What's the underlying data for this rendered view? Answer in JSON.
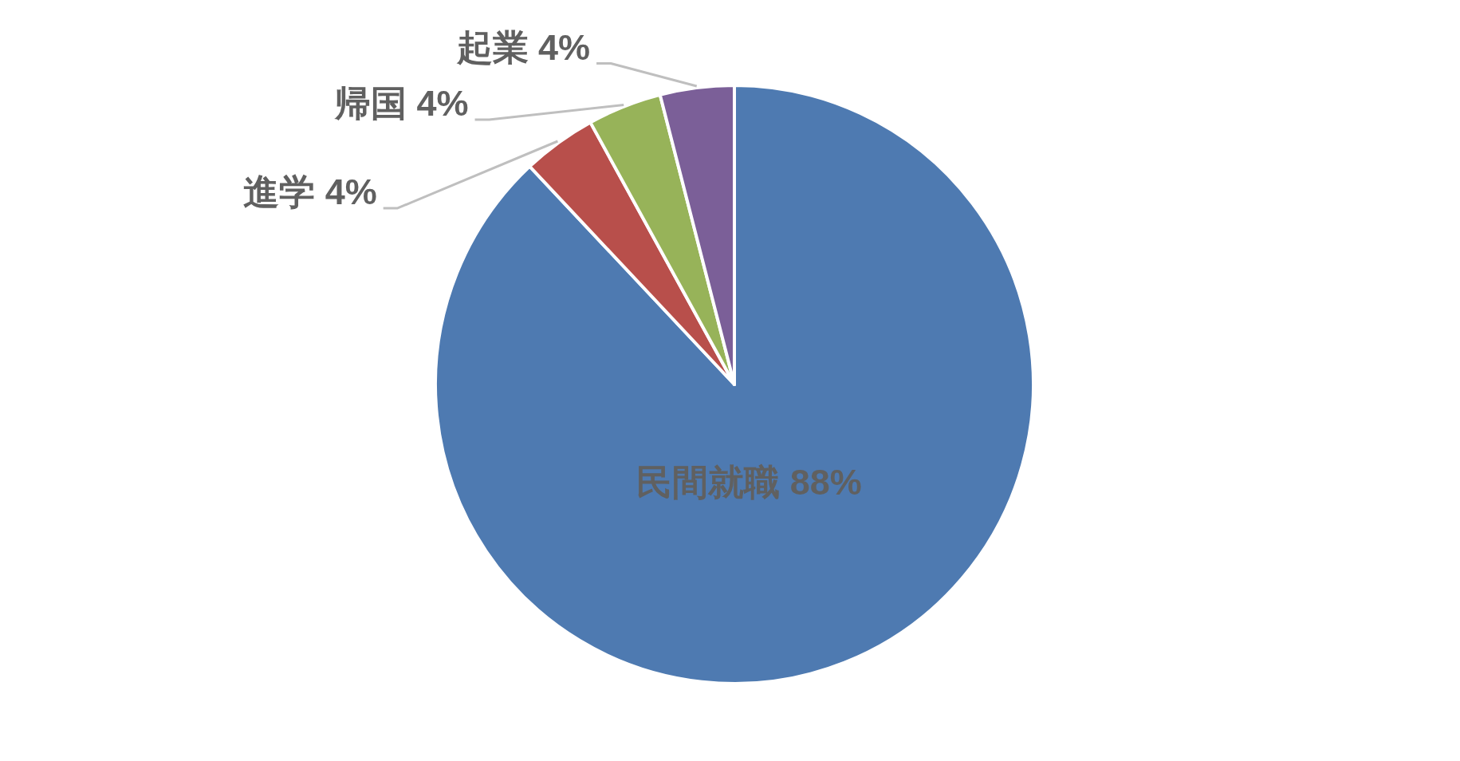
{
  "chart_data": {
    "type": "pie",
    "categories": [
      "民間就職",
      "進学",
      "帰国",
      "起業"
    ],
    "values": [
      88,
      4,
      4,
      4
    ],
    "colors": [
      "#4e7ab1",
      "#b84f4b",
      "#97b359",
      "#7b5f98"
    ],
    "value_labels": [
      "88%",
      "4%",
      "4%",
      "4%"
    ]
  }
}
